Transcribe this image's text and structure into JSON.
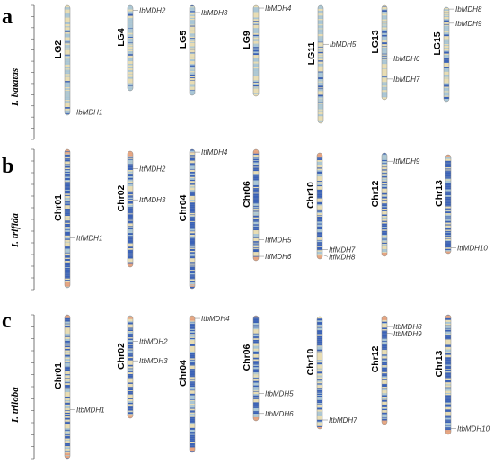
{
  "panels": [
    {
      "letter": "a",
      "species": "I. batatas",
      "chromosomes": [
        {
          "name": "LG2",
          "genes": [
            {
              "label": "IbMDH1",
              "pos": 0.97
            }
          ]
        },
        {
          "name": "LG4",
          "genes": [
            {
              "label": "IbMDH2",
              "pos": 0.06
            }
          ]
        },
        {
          "name": "LG5",
          "genes": [
            {
              "label": "IbMDH3",
              "pos": 0.08
            }
          ]
        },
        {
          "name": "LG9",
          "genes": [
            {
              "label": "IbMDH4",
              "pos": 0.03
            }
          ]
        },
        {
          "name": "LG11",
          "genes": [
            {
              "label": "IbMDH5",
              "pos": 0.33
            }
          ]
        },
        {
          "name": "LG13",
          "genes": [
            {
              "label": "IbMDH6",
              "pos": 0.56
            },
            {
              "label": "IbMDH7",
              "pos": 0.78
            }
          ]
        },
        {
          "name": "LG15",
          "genes": [
            {
              "label": "IbMDH8",
              "pos": 0.02
            },
            {
              "label": "IbMDH9",
              "pos": 0.17
            }
          ]
        }
      ]
    },
    {
      "letter": "b",
      "species": "I. trifida",
      "chromosomes": [
        {
          "name": "Chr01",
          "genes": [
            {
              "label": "ItfMDH1",
              "pos": 0.64
            }
          ]
        },
        {
          "name": "Chr02",
          "genes": [
            {
              "label": "ItfMDH2",
              "pos": 0.15
            },
            {
              "label": "ItfMDH3",
              "pos": 0.42
            }
          ]
        },
        {
          "name": "Chr04",
          "genes": [
            {
              "label": "ItfMDH4",
              "pos": 0.02
            }
          ]
        },
        {
          "name": "Chr06",
          "genes": [
            {
              "label": "ItfMDH5",
              "pos": 0.81
            },
            {
              "label": "ItfMDH6",
              "pos": 0.96
            }
          ]
        },
        {
          "name": "Chr10",
          "genes": [
            {
              "label": "ItfMDH7",
              "pos": 0.91
            },
            {
              "label": "ItfMDH8",
              "pos": 0.96
            }
          ]
        },
        {
          "name": "Chr12",
          "genes": [
            {
              "label": "ItfMDH9",
              "pos": 0.08
            }
          ]
        },
        {
          "name": "Chr13",
          "genes": [
            {
              "label": "ItfMDH10",
              "pos": 0.94
            }
          ]
        }
      ]
    },
    {
      "letter": "c",
      "species": "I. triloba",
      "chromosomes": [
        {
          "name": "Chr01",
          "genes": [
            {
              "label": "ItbMDH1",
              "pos": 0.66
            }
          ]
        },
        {
          "name": "Chr02",
          "genes": [
            {
              "label": "ItbMDH2",
              "pos": 0.25
            },
            {
              "label": "ItbMDH3",
              "pos": 0.44
            }
          ]
        },
        {
          "name": "Chr04",
          "genes": [
            {
              "label": "ItbMDH4",
              "pos": 0.02
            }
          ]
        },
        {
          "name": "Chr06",
          "genes": [
            {
              "label": "ItbMDH5",
              "pos": 0.74
            },
            {
              "label": "ItbMDH6",
              "pos": 0.93
            }
          ]
        },
        {
          "name": "Chr10",
          "genes": [
            {
              "label": "ItbMDH7",
              "pos": 0.92
            }
          ]
        },
        {
          "name": "Chr12",
          "genes": [
            {
              "label": "ItbMDH8",
              "pos": 0.1
            },
            {
              "label": "ItbMDH9",
              "pos": 0.16
            }
          ]
        },
        {
          "name": "Chr13",
          "genes": [
            {
              "label": "ItbMDH10",
              "pos": 0.95
            }
          ]
        }
      ]
    }
  ],
  "colors": {
    "light": "#e8ddb4",
    "mid": "#a9c6d6",
    "dark": "#3a62b8",
    "pink": "#e6a27f",
    "leader": "#777777",
    "ruler": "#555555"
  }
}
